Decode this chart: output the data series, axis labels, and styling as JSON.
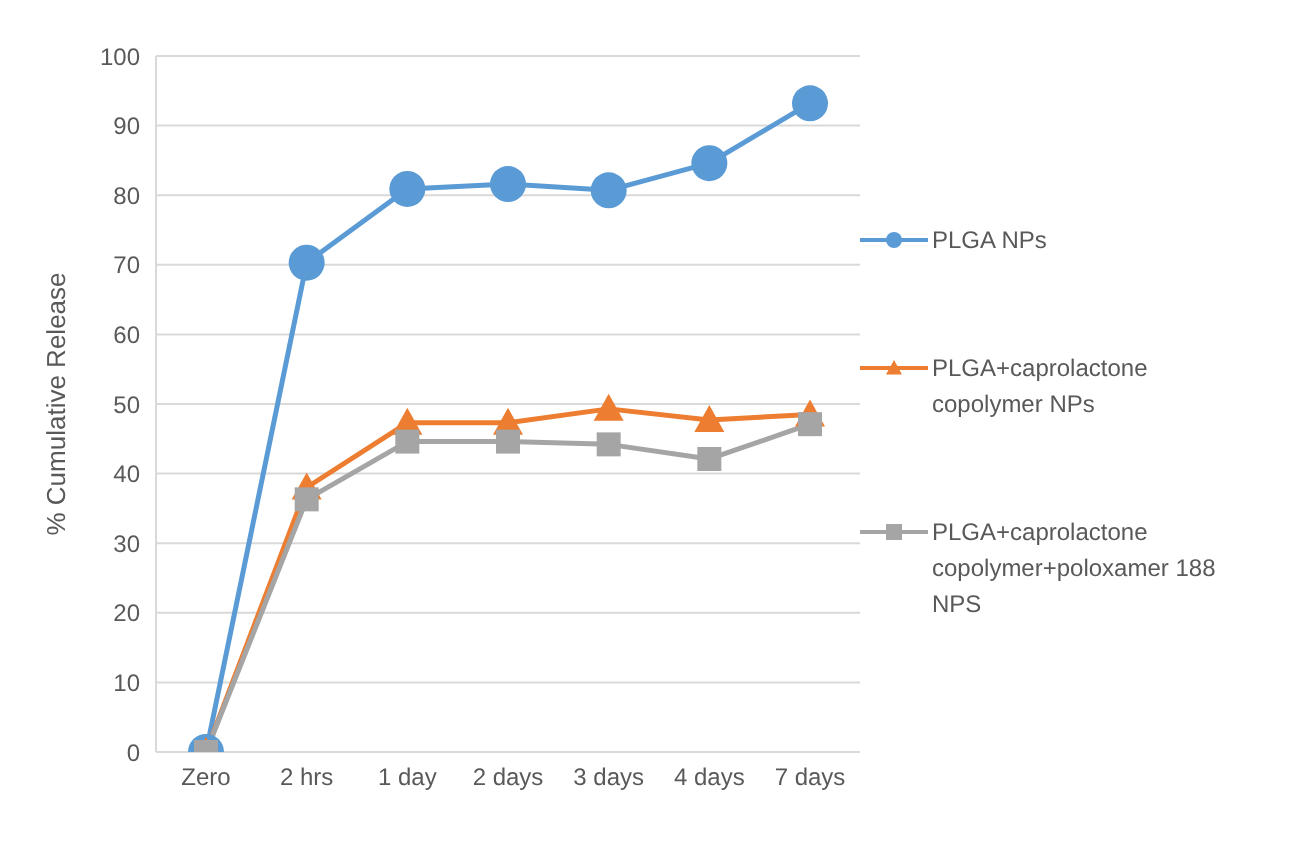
{
  "chart_data": {
    "type": "line",
    "ylabel": "% Cumulative Release",
    "categories": [
      "Zero",
      "2 hrs",
      "1 day",
      "2 days",
      "3 days",
      "4 days",
      "7 days"
    ],
    "ylim": [
      0,
      100
    ],
    "yticks": [
      0,
      10,
      20,
      30,
      40,
      50,
      60,
      70,
      80,
      90,
      100
    ],
    "grid": "y",
    "legend": "right",
    "series": [
      {
        "name": "PLGA NPs",
        "color": "#5b9bd5",
        "marker": "circle",
        "values": [
          0,
          70.3,
          80.9,
          81.6,
          80.7,
          84.6,
          93.2
        ]
      },
      {
        "name": "PLGA+caprolactone copolymer NPs",
        "color": "#ed7d31",
        "marker": "triangle",
        "values": [
          0,
          38,
          47.3,
          47.3,
          49.3,
          47.7,
          48.5
        ]
      },
      {
        "name": "PLGA+caprolactone copolymer+poloxamer 188 NPS",
        "color": "#a5a5a5",
        "marker": "square",
        "values": [
          0,
          36.3,
          44.6,
          44.6,
          44.2,
          42.1,
          47.1
        ]
      }
    ]
  }
}
